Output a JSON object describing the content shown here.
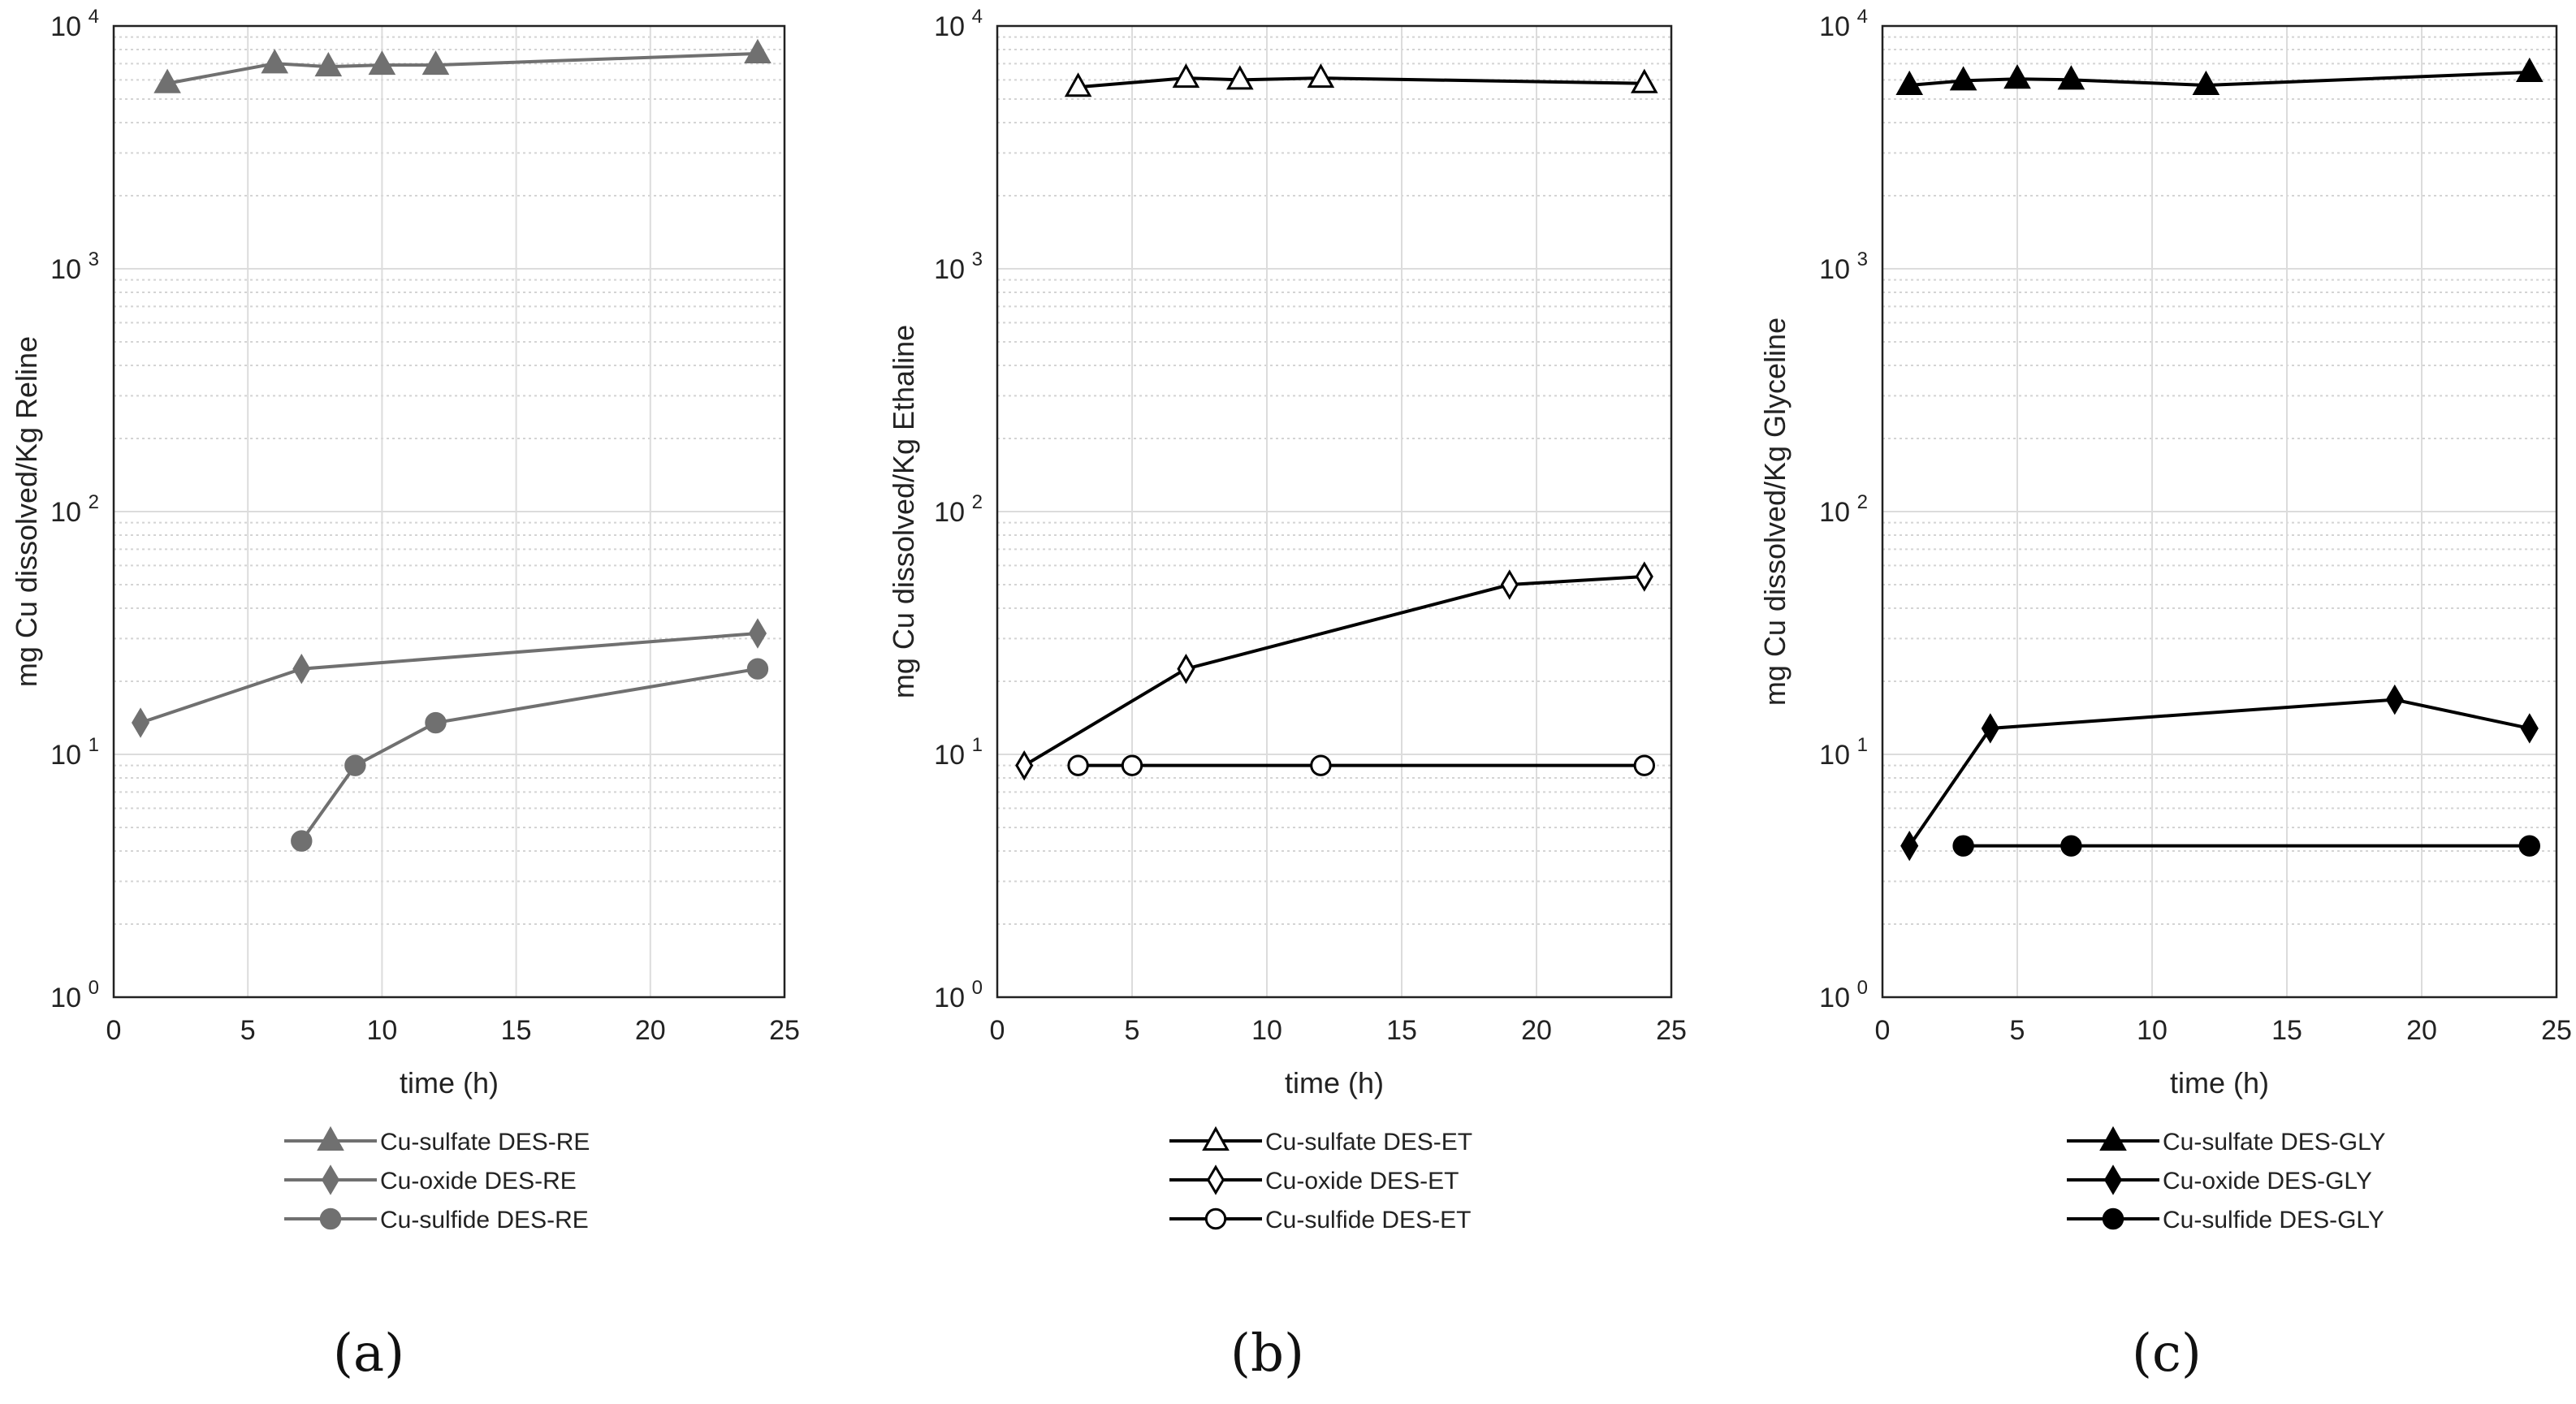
{
  "chart_data": [
    {
      "type": "line",
      "panel_label": "(a)",
      "color": "#707070",
      "ylabel": "mg Cu dissolved/Kg Reline",
      "xlabel": "time (h)",
      "yscale": "log",
      "xlim": [
        0,
        25
      ],
      "ylim": [
        1,
        10000
      ],
      "x_ticks": [
        "0",
        "5",
        "10",
        "15",
        "20",
        "25"
      ],
      "y_ticks": [
        {
          "base": "10",
          "exp": "0"
        },
        {
          "base": "10",
          "exp": "1"
        },
        {
          "base": "10",
          "exp": "2"
        },
        {
          "base": "10",
          "exp": "3"
        },
        {
          "base": "10",
          "exp": "4"
        }
      ],
      "grid": true,
      "legend_position": "below",
      "series": [
        {
          "name": "Cu-sulfate DES-RE",
          "marker": "triangle",
          "filled": true,
          "x": [
            2,
            6,
            8,
            10,
            12,
            24
          ],
          "y": [
            5800,
            7000,
            6800,
            6900,
            6900,
            7700
          ]
        },
        {
          "name": "Cu-oxide DES-RE",
          "marker": "diamond",
          "filled": true,
          "x": [
            1,
            7,
            24
          ],
          "y": [
            13.5,
            22.5,
            31.5
          ]
        },
        {
          "name": "Cu-sulfide DES-RE",
          "marker": "circle",
          "filled": true,
          "x": [
            7,
            9,
            12,
            24
          ],
          "y": [
            4.4,
            9,
            13.5,
            22.5
          ]
        }
      ]
    },
    {
      "type": "line",
      "panel_label": "(b)",
      "color": "#000000",
      "ylabel": "mg Cu dissolved/Kg Ethaline",
      "xlabel": "time (h)",
      "yscale": "log",
      "xlim": [
        0,
        25
      ],
      "ylim": [
        1,
        10000
      ],
      "x_ticks": [
        "0",
        "5",
        "10",
        "15",
        "20",
        "25"
      ],
      "y_ticks": [
        {
          "base": "10",
          "exp": "0"
        },
        {
          "base": "10",
          "exp": "1"
        },
        {
          "base": "10",
          "exp": "2"
        },
        {
          "base": "10",
          "exp": "3"
        },
        {
          "base": "10",
          "exp": "4"
        }
      ],
      "grid": true,
      "legend_position": "below",
      "series": [
        {
          "name": "Cu-sulfate DES-ET",
          "marker": "triangle",
          "filled": false,
          "x": [
            3,
            7,
            9,
            12,
            24
          ],
          "y": [
            5600,
            6100,
            6000,
            6100,
            5800
          ]
        },
        {
          "name": "Cu-oxide DES-ET",
          "marker": "diamond",
          "filled": false,
          "x": [
            1,
            7,
            19,
            24
          ],
          "y": [
            9,
            22.5,
            50,
            54
          ]
        },
        {
          "name": "Cu-sulfide DES-ET",
          "marker": "circle",
          "filled": false,
          "x": [
            3,
            5,
            12,
            24
          ],
          "y": [
            9,
            9,
            9,
            9
          ]
        }
      ]
    },
    {
      "type": "line",
      "panel_label": "(c)",
      "color": "#000000",
      "ylabel": "mg Cu dissolved/Kg Glyceline",
      "xlabel": "time (h)",
      "yscale": "log",
      "xlim": [
        0,
        25
      ],
      "ylim": [
        1,
        10000
      ],
      "x_ticks": [
        "0",
        "5",
        "10",
        "15",
        "20",
        "25"
      ],
      "y_ticks": [
        {
          "base": "10",
          "exp": "0"
        },
        {
          "base": "10",
          "exp": "1"
        },
        {
          "base": "10",
          "exp": "2"
        },
        {
          "base": "10",
          "exp": "3"
        },
        {
          "base": "10",
          "exp": "4"
        }
      ],
      "grid": true,
      "legend_position": "below",
      "series": [
        {
          "name": "Cu-sulfate DES-GLY",
          "marker": "triangle",
          "filled": true,
          "x": [
            1,
            3,
            5,
            7,
            12,
            24
          ],
          "y": [
            5700,
            5950,
            6050,
            6000,
            5700,
            6450
          ]
        },
        {
          "name": "Cu-oxide DES-GLY",
          "marker": "diamond",
          "filled": true,
          "x": [
            1,
            4,
            19,
            24
          ],
          "y": [
            4.2,
            12.8,
            16.8,
            12.8
          ]
        },
        {
          "name": "Cu-sulfide DES-GLY",
          "marker": "circle",
          "filled": true,
          "x": [
            3,
            7,
            24
          ],
          "y": [
            4.2,
            4.2,
            4.2
          ]
        }
      ]
    }
  ]
}
